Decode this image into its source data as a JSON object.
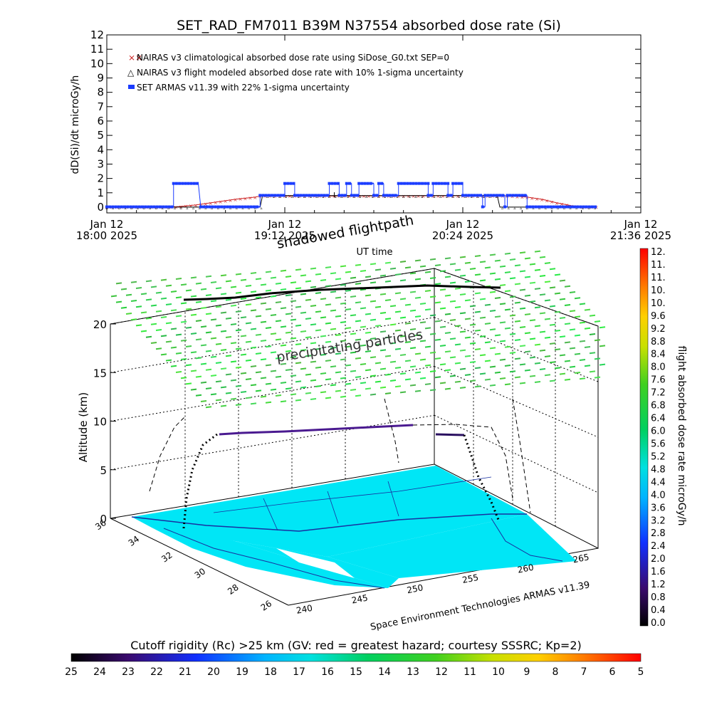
{
  "figure": {
    "title": "SET_RAD_FM7011  B39M N37554 absorbed dose rate (Si)",
    "credit": "Space Environment Technologies ARMAS v11.39"
  },
  "chart_data": [
    {
      "type": "line",
      "title": "SET_RAD_FM7011  B39M N37554 absorbed dose rate (Si)",
      "xlabel": "UT time",
      "ylabel": "dD(Si)/dt microGy/h",
      "x_unit": "minutes after 18:00 UT, 2025 Jan 12",
      "xlim": [
        0,
        216
      ],
      "ylim": [
        -0.4,
        12
      ],
      "y_ticks": [
        "0",
        "1",
        "2",
        "3",
        "4",
        "5",
        "6",
        "7",
        "8",
        "9",
        "10",
        "11",
        "12"
      ],
      "x_ticks": [
        {
          "label": [
            "Jan 12",
            "18:00 2025"
          ]
        },
        {
          "label": [
            "Jan 12",
            "19:12 2025"
          ]
        },
        {
          "label": [
            "Jan 12",
            "20:24 2025"
          ]
        },
        {
          "label": [
            "Jan 12",
            "21:36 2025"
          ]
        }
      ],
      "legend": [
        {
          "text": "NAIRAS v3 climatological absorbed dose rate using SiDose_G0.txt SEP=0",
          "color": "#cc2222",
          "marker": "x"
        },
        {
          "text": "NAIRAS v3 flight modeled absorbed dose rate with 10% 1-sigma uncertainty",
          "color": "#000000",
          "marker": "triangle"
        },
        {
          "text": "SET ARMAS v11.39 with 22% 1-sigma uncertainty",
          "color": "#1a3cff",
          "marker": "square"
        }
      ],
      "series": [
        {
          "name": "NAIRAS v3 climatological absorbed dose rate using SiDose_G0.txt SEP=0",
          "x": [
            0,
            28,
            36,
            44,
            52,
            60,
            62,
            100,
            140,
            160,
            166,
            170,
            176,
            182,
            188,
            192,
            198
          ],
          "y": [
            0.02,
            0.02,
            0.15,
            0.35,
            0.55,
            0.7,
            0.78,
            0.78,
            0.8,
            0.8,
            0.75,
            0.7,
            0.55,
            0.3,
            0.1,
            0.03,
            0.02
          ]
        },
        {
          "name": "NAIRAS v3 flight modeled absorbed dose rate with 10% 1-sigma uncertainty",
          "x": [
            0,
            62,
            63,
            155,
            158,
            159,
            198
          ],
          "y": [
            0.0,
            0.0,
            0.8,
            0.8,
            0.75,
            0.0,
            0.0
          ]
        },
        {
          "name": "SET ARMAS v11.39 with 22% 1-sigma uncertainty",
          "segments": [
            {
              "x": [
                0,
                27
              ],
              "y": [
                0.02,
                0.02
              ]
            },
            {
              "x": [
                27,
                37
              ],
              "y": [
                1.65,
                1.65
              ]
            },
            {
              "x": [
                38,
                62
              ],
              "y": [
                0.02,
                0.02
              ]
            },
            {
              "x": [
                62,
                72
              ],
              "y": [
                0.82,
                0.82
              ]
            },
            {
              "x": [
                72,
                76
              ],
              "y": [
                1.65,
                1.65
              ]
            },
            {
              "x": [
                76,
                90
              ],
              "y": [
                0.82,
                0.82
              ]
            },
            {
              "x": [
                90,
                94
              ],
              "y": [
                1.65,
                1.65
              ]
            },
            {
              "x": [
                94,
                97
              ],
              "y": [
                0.82,
                0.82
              ]
            },
            {
              "x": [
                97,
                99
              ],
              "y": [
                1.65,
                1.65
              ]
            },
            {
              "x": [
                99,
                102
              ],
              "y": [
                0.82,
                0.82
              ]
            },
            {
              "x": [
                102,
                108
              ],
              "y": [
                1.65,
                1.65
              ]
            },
            {
              "x": [
                108,
                110
              ],
              "y": [
                0.82,
                0.82
              ]
            },
            {
              "x": [
                110,
                112
              ],
              "y": [
                1.65,
                1.65
              ]
            },
            {
              "x": [
                112,
                118
              ],
              "y": [
                0.82,
                0.82
              ]
            },
            {
              "x": [
                118,
                130
              ],
              "y": [
                1.65,
                1.65
              ]
            },
            {
              "x": [
                130,
                132
              ],
              "y": [
                0.82,
                0.82
              ]
            },
            {
              "x": [
                132,
                138
              ],
              "y": [
                1.65,
                1.65
              ]
            },
            {
              "x": [
                138,
                140
              ],
              "y": [
                0.82,
                0.82
              ]
            },
            {
              "x": [
                140,
                144
              ],
              "y": [
                1.65,
                1.65
              ]
            },
            {
              "x": [
                144,
                152
              ],
              "y": [
                0.82,
                0.82
              ]
            },
            {
              "x": [
                152,
                153
              ],
              "y": [
                0.02,
                0.02
              ]
            },
            {
              "x": [
                153,
                161
              ],
              "y": [
                0.82,
                0.82
              ]
            },
            {
              "x": [
                161,
                162
              ],
              "y": [
                0.02,
                0.02
              ]
            },
            {
              "x": [
                162,
                170
              ],
              "y": [
                0.82,
                0.82
              ]
            },
            {
              "x": [
                170,
                198
              ],
              "y": [
                0.02,
                0.02
              ]
            }
          ]
        }
      ]
    },
    {
      "type": "scatter",
      "title": "shadowed flightpath",
      "subtitle_annotation": "precipitating particles",
      "zlabel": "Altitude (km)",
      "z_ticks": [
        "0",
        "5",
        "10",
        "15",
        "20"
      ],
      "lat_ticks": [
        "36",
        "34",
        "32",
        "30",
        "28",
        "26"
      ],
      "lon_ticks": [
        "240",
        "245",
        "250",
        "255",
        "260",
        "265"
      ],
      "xlim_lon": [
        237,
        268
      ],
      "ylim_lat": [
        26,
        37
      ],
      "zlim": [
        0,
        20
      ],
      "flight_track": {
        "lon": [
          241,
          242,
          243,
          247,
          251,
          255,
          259,
          260,
          261,
          262
        ],
        "lat": [
          34,
          34.1,
          34.3,
          34.7,
          34.9,
          35,
          34.8,
          34.5,
          33.6,
          33.0
        ],
        "alt_km": [
          0,
          5,
          10.8,
          11.2,
          11.5,
          11.6,
          11.4,
          11.2,
          5,
          0
        ]
      }
    },
    {
      "type": "heatmap",
      "title": "flight absorbed dose rate microGy/h",
      "orientation": "vertical",
      "range": [
        0.0,
        12.0
      ],
      "tick_labels": [
        "12.",
        "11.",
        "11.",
        "10.",
        "10.",
        "9.6",
        "9.2",
        "8.8",
        "8.4",
        "8.0",
        "7.6",
        "7.2",
        "6.8",
        "6.4",
        "6.0",
        "5.6",
        "5.2",
        "4.8",
        "4.4",
        "4.0",
        "3.6",
        "3.2",
        "2.8",
        "2.4",
        "2.0",
        "1.6",
        "1.2",
        "0.8",
        "0.4",
        "0.0"
      ]
    },
    {
      "type": "heatmap",
      "title": "Cutoff rigidity (Rc) >25 km (GV: red = greatest hazard; courtesy SSSRC; Kp=2)",
      "orientation": "horizontal",
      "range": [
        25,
        5
      ],
      "tick_labels": [
        "25",
        "24",
        "23",
        "22",
        "21",
        "20",
        "19",
        "18",
        "17",
        "16",
        "15",
        "14",
        "13",
        "12",
        "11",
        "10",
        "9",
        "8",
        "7",
        "6",
        "5"
      ]
    }
  ]
}
